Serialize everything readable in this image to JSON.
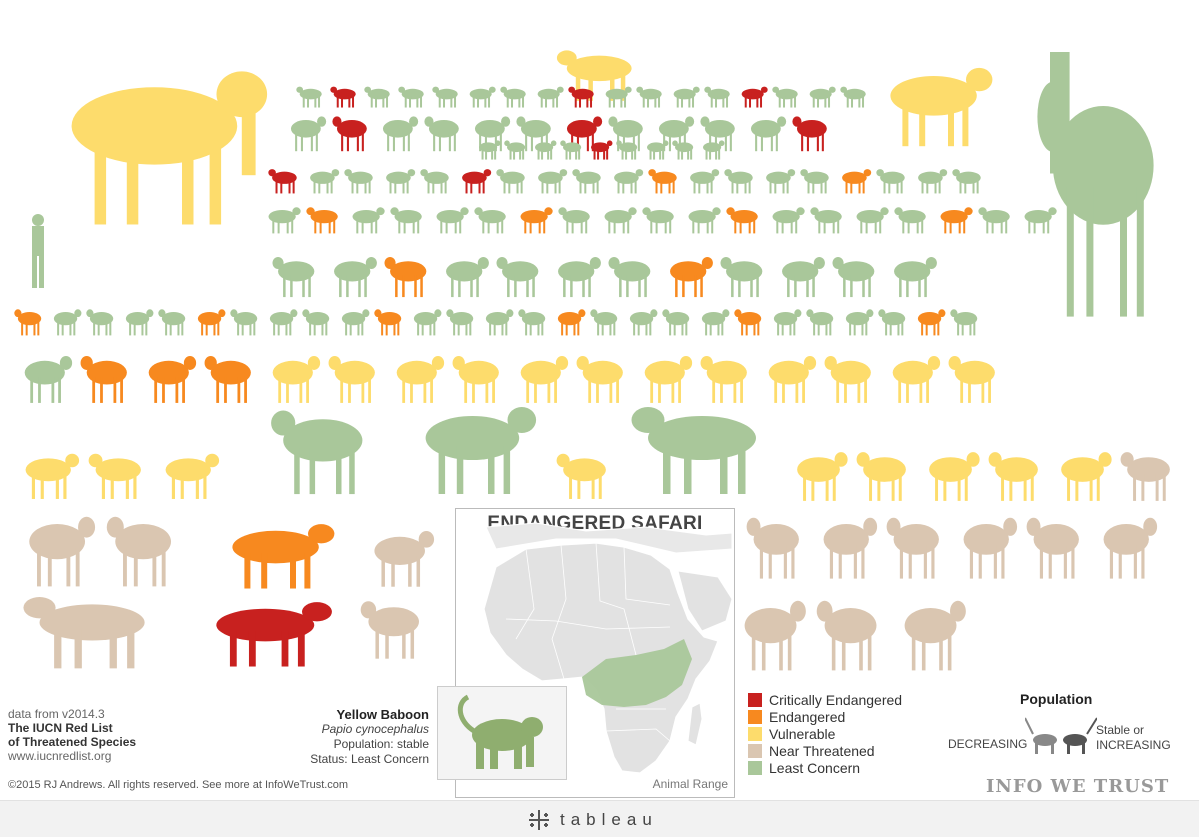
{
  "colors": {
    "critically_endangered": "#c8211f",
    "endangered": "#f7891f",
    "vulnerable": "#fddc6c",
    "near_threatened": "#dac6b1",
    "least_concern": "#a9c79a",
    "land": "#e2e2e2",
    "range": "#a9c79a"
  },
  "attribution": {
    "line1": "data from v2014.3",
    "line2": "The IUCN Red List",
    "line3": "of Threatened Species",
    "line4": "www.iucnredlist.org"
  },
  "copyright": "©2015 RJ Andrews. All rights reserved. See more at InfoWeTrust.com",
  "map": {
    "title": "ENDANGERED SAFARI",
    "caption": "Animal Range"
  },
  "detail": {
    "name": "Yellow Baboon",
    "scientific": "Papio cynocephalus",
    "population": "Population: stable",
    "status": "Status: Least Concern",
    "image_icon": "baboon-icon"
  },
  "population": {
    "title": "Population",
    "decreasing": "DECREASING",
    "stable_line1": "Stable or",
    "stable_line2": "INCREASING"
  },
  "brand": "INFO WE TRUST",
  "footer": {
    "label": "tableau",
    "icon": "tableau-plus-icon"
  },
  "chart_data": {
    "type": "scatter",
    "title": "ENDANGERED SAFARI",
    "legend": "bottom-right",
    "categories": [
      "Critically Endangered",
      "Endangered",
      "Vulnerable",
      "Near Threatened",
      "Least Concern"
    ],
    "series": [
      {
        "name": "Critically Endangered",
        "values": [
          1,
          1,
          1,
          1,
          1,
          1,
          1,
          1,
          1,
          1
        ]
      },
      {
        "name": "Endangered",
        "values": [
          1,
          1,
          1,
          1,
          1,
          1,
          1,
          1,
          1,
          1,
          1,
          1,
          1,
          1,
          1,
          1,
          1
        ]
      },
      {
        "name": "Vulnerable",
        "values": [
          1,
          1,
          1,
          1,
          1,
          1,
          1,
          1,
          1,
          1,
          1,
          1,
          1,
          1,
          1,
          1,
          1,
          1,
          1,
          1,
          1
        ]
      },
      {
        "name": "Near Threatened",
        "values": [
          1,
          1,
          1,
          1,
          1,
          1,
          1,
          1,
          1,
          1,
          1,
          1,
          1,
          1
        ]
      },
      {
        "name": "Least Concern",
        "values": [
          1,
          1,
          1,
          1,
          1,
          1,
          1,
          1,
          1,
          1,
          1,
          1,
          1,
          1,
          1,
          1,
          1,
          1,
          1,
          1,
          1,
          1,
          1,
          1,
          1,
          1,
          1,
          1,
          1,
          1,
          1,
          1,
          1,
          1,
          1,
          1,
          1,
          1,
          1,
          1,
          1,
          1,
          1,
          1,
          1,
          1,
          1,
          1,
          1,
          1,
          1,
          1,
          1,
          1,
          1,
          1,
          1,
          1,
          1,
          1,
          1,
          1,
          1,
          1,
          1,
          1,
          1,
          1,
          1,
          1,
          1,
          1,
          1,
          1,
          1,
          1,
          1,
          1,
          1,
          1,
          1,
          1,
          1,
          1,
          1,
          1,
          1,
          1,
          1,
          1,
          1,
          1,
          1,
          1,
          1,
          1,
          1
        ]
      }
    ]
  }
}
